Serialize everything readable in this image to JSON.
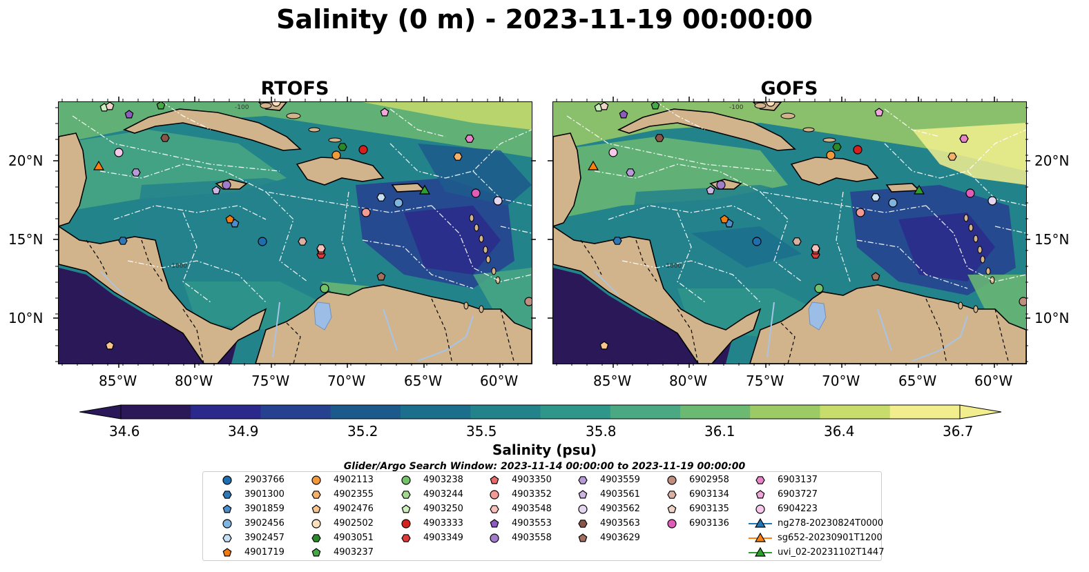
{
  "title": "Salinity (0 m) - 2023-11-19 00:00:00",
  "panels": [
    {
      "title": "RTOFS"
    },
    {
      "title": "GOFS"
    }
  ],
  "x_ticks": [
    "85°W",
    "80°W",
    "75°W",
    "70°W",
    "65°W",
    "60°W"
  ],
  "y_ticks": [
    "20°N",
    "15°N",
    "10°N"
  ],
  "colorbar": {
    "label": "Salinity (psu)",
    "ticks": [
      "34.6",
      "34.9",
      "35.2",
      "35.5",
      "35.8",
      "36.1",
      "36.4",
      "36.7"
    ],
    "min": 34.6,
    "max": 36.7,
    "colormap": [
      "#2a1858",
      "#2b2a8c",
      "#26418f",
      "#1d5a8c",
      "#1b6f8c",
      "#23838b",
      "#2f968a",
      "#4aa882",
      "#6cba72",
      "#9ccb66",
      "#c8dc6c",
      "#f2ee8e"
    ]
  },
  "contour_labels": [
    "-100",
    "-1000"
  ],
  "search_window": "Glider/Argo Search Window: 2023-11-14 00:00:00 to 2023-11-19 00:00:00",
  "legend": [
    {
      "label": "2903766",
      "marker": "circle",
      "color": "#1f6fb0"
    },
    {
      "label": "3901300",
      "marker": "hexagon",
      "color": "#2f78b8"
    },
    {
      "label": "3901859",
      "marker": "pentagon",
      "color": "#4a8fcc"
    },
    {
      "label": "3902456",
      "marker": "circle",
      "color": "#7fb5e0"
    },
    {
      "label": "3902457",
      "marker": "hexagon",
      "color": "#c6dff2"
    },
    {
      "label": "4901719",
      "marker": "pentagon",
      "color": "#f07c10"
    },
    {
      "label": "4902113",
      "marker": "circle",
      "color": "#f29a3a"
    },
    {
      "label": "4902355",
      "marker": "hexagon",
      "color": "#f5b06a"
    },
    {
      "label": "4902476",
      "marker": "pentagon",
      "color": "#f7c58e"
    },
    {
      "label": "4902502",
      "marker": "circle",
      "color": "#fbe0c0"
    },
    {
      "label": "4903051",
      "marker": "hexagon",
      "color": "#2a8a2a"
    },
    {
      "label": "4903237",
      "marker": "pentagon",
      "color": "#46a846"
    },
    {
      "label": "4903238",
      "marker": "circle",
      "color": "#74c26a"
    },
    {
      "label": "4903244",
      "marker": "hexagon",
      "color": "#a2d98e"
    },
    {
      "label": "4903250",
      "marker": "pentagon",
      "color": "#ccefbe"
    },
    {
      "label": "4903333",
      "marker": "circle",
      "color": "#d62020"
    },
    {
      "label": "4903349",
      "marker": "hexagon",
      "color": "#e03a3a"
    },
    {
      "label": "4903350",
      "marker": "pentagon",
      "color": "#ea6a6a"
    },
    {
      "label": "4903352",
      "marker": "circle",
      "color": "#f29a94"
    },
    {
      "label": "4903548",
      "marker": "hexagon",
      "color": "#f8c0ba"
    },
    {
      "label": "4903553",
      "marker": "pentagon",
      "color": "#8e5cc0"
    },
    {
      "label": "4903558",
      "marker": "circle",
      "color": "#a27ccc"
    },
    {
      "label": "4903559",
      "marker": "hexagon",
      "color": "#b89ad8"
    },
    {
      "label": "4903561",
      "marker": "pentagon",
      "color": "#cdb6e4"
    },
    {
      "label": "4903562",
      "marker": "circle",
      "color": "#e4d6f0"
    },
    {
      "label": "4903563",
      "marker": "hexagon",
      "color": "#8a5548"
    },
    {
      "label": "4903629",
      "marker": "pentagon",
      "color": "#a4705e"
    },
    {
      "label": "6902958",
      "marker": "circle",
      "color": "#bf8e7e"
    },
    {
      "label": "6903134",
      "marker": "hexagon",
      "color": "#d9b0a2"
    },
    {
      "label": "6903135",
      "marker": "pentagon",
      "color": "#f0d4c8"
    },
    {
      "label": "6903136",
      "marker": "circle",
      "color": "#e05cb8"
    },
    {
      "label": "6903137",
      "marker": "hexagon",
      "color": "#e884c8"
    },
    {
      "label": "6903727",
      "marker": "pentagon",
      "color": "#f0a8da"
    },
    {
      "label": "6904223",
      "marker": "circle",
      "color": "#f7c8ea"
    },
    {
      "label": "ng278-20230824T0000",
      "marker": "triangle-line",
      "color": "#1f77b4"
    },
    {
      "label": "sg652-20230901T1200",
      "marker": "triangle-line",
      "color": "#ff7f0e"
    },
    {
      "label": "uvi_02-20231102T1447",
      "marker": "triangle-line",
      "color": "#2ca02c"
    }
  ],
  "land_color": "#d2b48c",
  "colors": {
    "eez_lines": "#ffffff",
    "rivers": "#a6c4e6",
    "lake": "#9bbde6"
  }
}
